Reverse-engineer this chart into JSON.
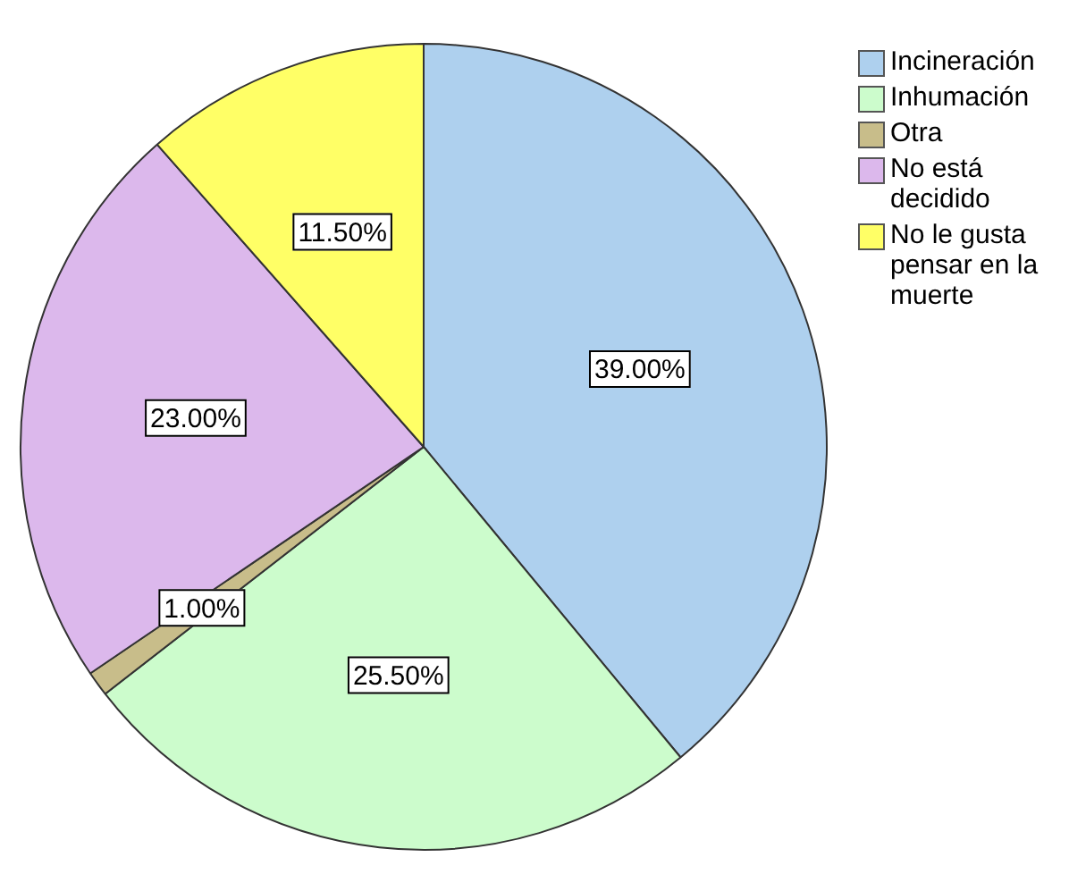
{
  "chart_data": {
    "type": "pie",
    "categories": [
      "Incineración",
      "Inhumación",
      "Otra",
      "No está decidido",
      "No le gusta pensar en la muerte"
    ],
    "values": [
      39,
      25.5,
      1,
      23,
      11.5
    ],
    "colors": [
      "#aed0ee",
      "#ccfccc",
      "#c8bd8a",
      "#dcb8ec",
      "#ffff66"
    ],
    "value_labels": [
      "39.00%",
      "25.50%",
      "1.00%",
      "23.00%",
      "11.50%"
    ],
    "legend": "top right"
  }
}
